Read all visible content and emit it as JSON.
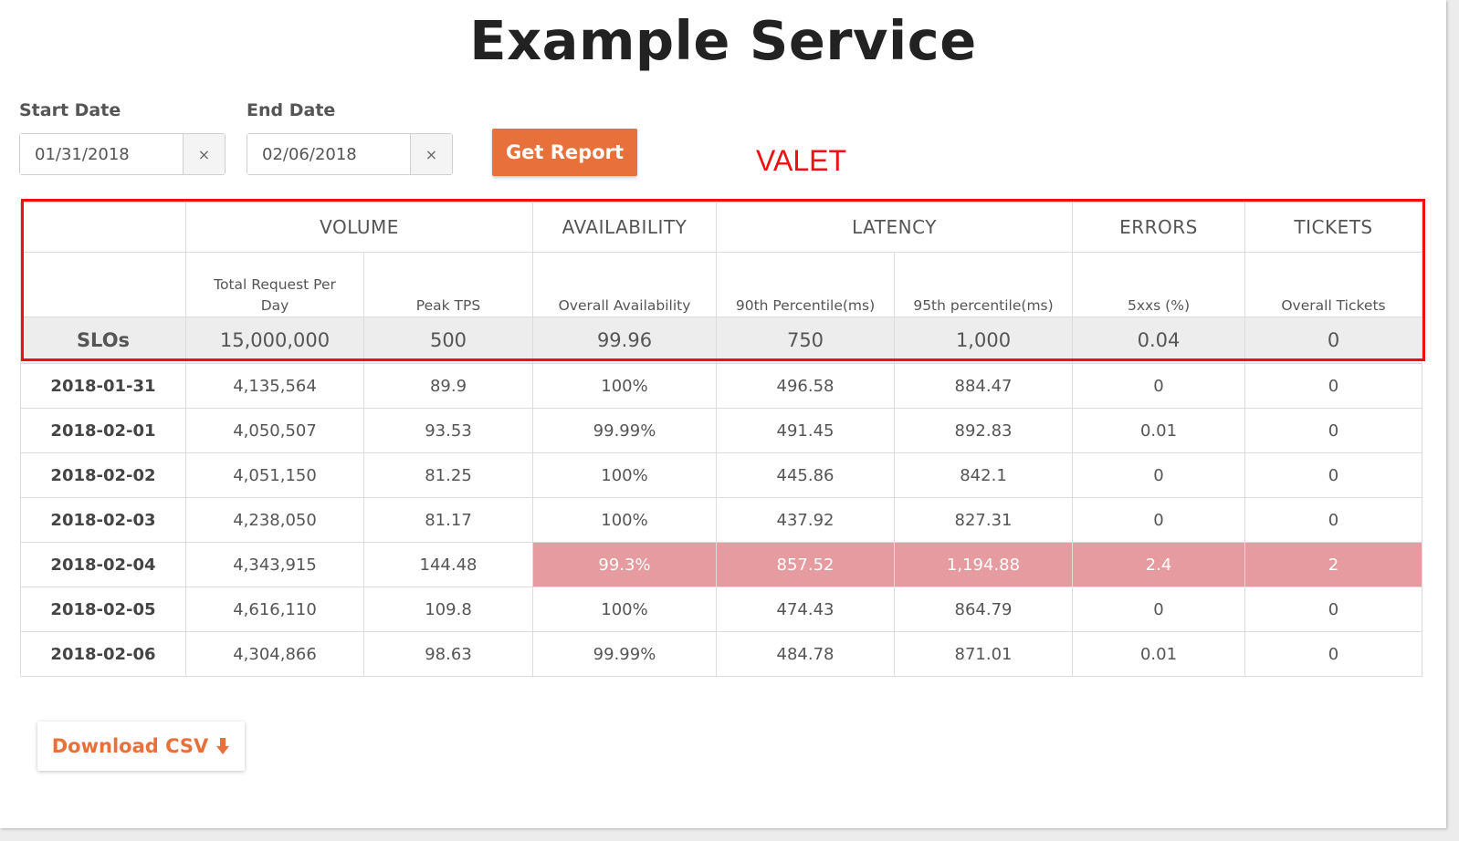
{
  "page": {
    "title": "Example Service"
  },
  "filters": {
    "start_label": "Start Date",
    "start_value": "01/31/2018",
    "end_label": "End Date",
    "end_value": "02/06/2018",
    "clear_glyph": "×",
    "get_report_label": "Get Report"
  },
  "annotation": {
    "text": "VALET",
    "color": "#ee1111"
  },
  "colors": {
    "accent": "#e8703a",
    "breach": "#e59b9f",
    "slo_background": "#ededed"
  },
  "table": {
    "groups": [
      "VOLUME",
      "AVAILABILITY",
      "LATENCY",
      "ERRORS",
      "TICKETS"
    ],
    "subheaders": [
      "Total Request Per Day",
      "Peak TPS",
      "Overall Availability",
      "90th Percentile(ms)",
      "95th percentile(ms)",
      "5xxs (%)",
      "Overall Tickets"
    ],
    "slo": {
      "label": "SLOs",
      "values": [
        "15,000,000",
        "500",
        "99.96",
        "750",
        "1,000",
        "0.04",
        "0"
      ]
    },
    "rows": [
      {
        "date": "2018-01-31",
        "values": [
          "4,135,564",
          "89.9",
          "100%",
          "496.58",
          "884.47",
          "0",
          "0"
        ]
      },
      {
        "date": "2018-02-01",
        "values": [
          "4,050,507",
          "93.53",
          "99.99%",
          "491.45",
          "892.83",
          "0.01",
          "0"
        ]
      },
      {
        "date": "2018-02-02",
        "values": [
          "4,051,150",
          "81.25",
          "100%",
          "445.86",
          "842.1",
          "0",
          "0"
        ]
      },
      {
        "date": "2018-02-03",
        "values": [
          "4,238,050",
          "81.17",
          "100%",
          "437.92",
          "827.31",
          "0",
          "0"
        ]
      },
      {
        "date": "2018-02-04",
        "values": [
          "4,343,915",
          "144.48",
          "99.3%",
          "857.52",
          "1,194.88",
          "2.4",
          "2"
        ]
      },
      {
        "date": "2018-02-05",
        "values": [
          "4,616,110",
          "109.8",
          "100%",
          "474.43",
          "864.79",
          "0",
          "0"
        ]
      },
      {
        "date": "2018-02-06",
        "values": [
          "4,304,866",
          "98.63",
          "99.99%",
          "484.78",
          "871.01",
          "0.01",
          "0"
        ]
      }
    ]
  },
  "download": {
    "label": "Download CSV",
    "icon": "download-arrow-icon"
  }
}
